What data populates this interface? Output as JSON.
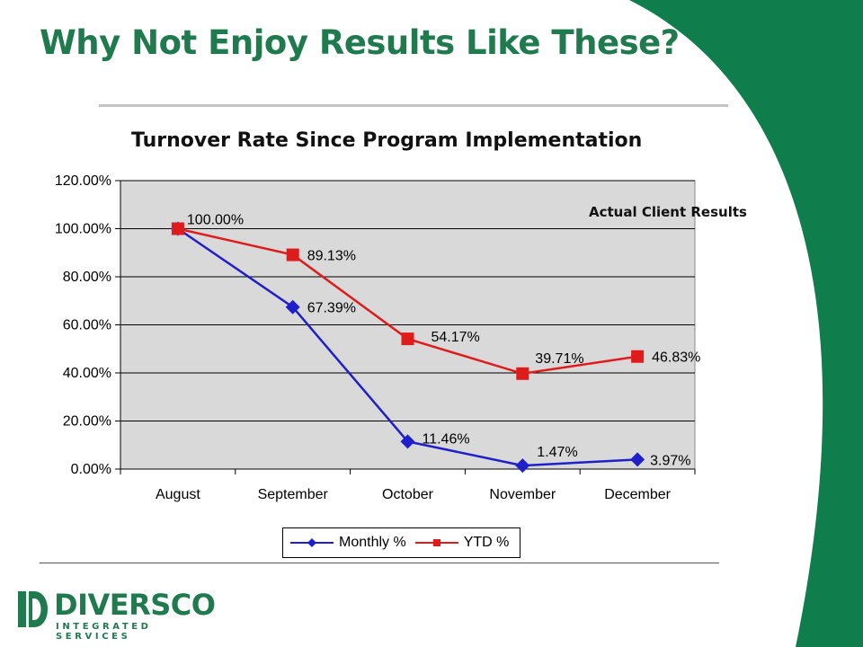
{
  "slide": {
    "title": "Why Not Enjoy Results Like These?",
    "annotation": "Actual Client Results"
  },
  "logo": {
    "name": "DIVERSCO",
    "tagline": "INTEGRATED SERVICES"
  },
  "colors": {
    "brand_green": "#1f7a4d",
    "swoosh_green": "#0f7d4c",
    "monthly": "#1f1fcc",
    "ytd": "#e01b1b",
    "plot_bg": "#d9d9d9"
  },
  "chart_data": {
    "type": "line",
    "title": "Turnover Rate Since Program Implementation",
    "xlabel": "",
    "ylabel": "",
    "categories": [
      "August",
      "September",
      "October",
      "November",
      "December"
    ],
    "ylim": [
      0,
      120
    ],
    "yticks": [
      0,
      20,
      40,
      60,
      80,
      100,
      120
    ],
    "ytick_labels": [
      "0.00%",
      "20.00%",
      "40.00%",
      "60.00%",
      "80.00%",
      "100.00%",
      "120.00%"
    ],
    "grid": true,
    "legend_position": "bottom",
    "series": [
      {
        "name": "Monthly %",
        "marker": "diamond",
        "values": [
          100.0,
          67.39,
          11.46,
          1.47,
          3.97
        ],
        "labels": [
          "",
          "67.39%",
          "11.46%",
          "1.47%",
          "3.97%"
        ]
      },
      {
        "name": "YTD %",
        "marker": "square",
        "values": [
          100.0,
          89.13,
          54.17,
          39.71,
          46.83
        ],
        "labels": [
          "100.00%",
          "89.13%",
          "54.17%",
          "39.71%",
          "46.83%"
        ]
      }
    ]
  }
}
